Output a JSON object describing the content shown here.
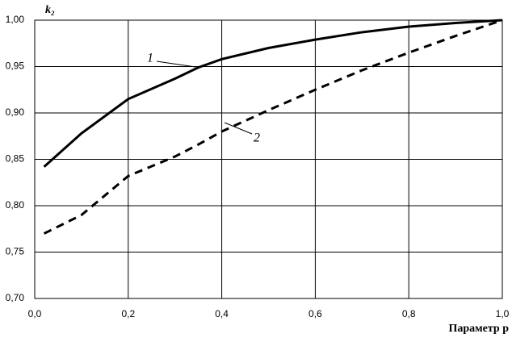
{
  "chart_data": {
    "type": "line",
    "y_label": "k₂",
    "x_label": "Параметр p",
    "x": [
      0.02,
      0.1,
      0.2,
      0.3,
      0.35,
      0.4,
      0.5,
      0.6,
      0.7,
      0.8,
      0.9,
      1.0
    ],
    "series": [
      {
        "name": "1",
        "color": "#000000",
        "line_style": "solid",
        "values": [
          0.842,
          0.878,
          0.915,
          0.937,
          0.949,
          0.958,
          0.97,
          0.979,
          0.987,
          0.993,
          0.997,
          1.0
        ]
      },
      {
        "name": "2",
        "color": "#000000",
        "line_style": "dashed",
        "values": [
          0.77,
          0.79,
          0.832,
          0.853,
          0.866,
          0.88,
          0.903,
          0.925,
          0.946,
          0.965,
          0.983,
          1.0
        ]
      }
    ],
    "xlim": [
      0,
      1
    ],
    "xticks": [
      {
        "value": 0,
        "label": "0,0"
      },
      {
        "value": 0.2,
        "label": "0,2"
      },
      {
        "value": 0.4,
        "label": "0,4"
      },
      {
        "value": 0.6,
        "label": "0,6"
      },
      {
        "value": 0.8,
        "label": "0,8"
      },
      {
        "value": 1,
        "label": "1,0"
      }
    ],
    "ylim": [
      0.7,
      1.0
    ],
    "yticks": [
      {
        "value": 0.7,
        "label": "0,70"
      },
      {
        "value": 0.75,
        "label": "0,75"
      },
      {
        "value": 0.8,
        "label": "0,80"
      },
      {
        "value": 0.85,
        "label": "0,85"
      },
      {
        "value": 0.9,
        "label": "0,90"
      },
      {
        "value": 0.95,
        "label": "0,95"
      },
      {
        "value": 1.0,
        "label": "1,00"
      }
    ],
    "grid": true
  }
}
